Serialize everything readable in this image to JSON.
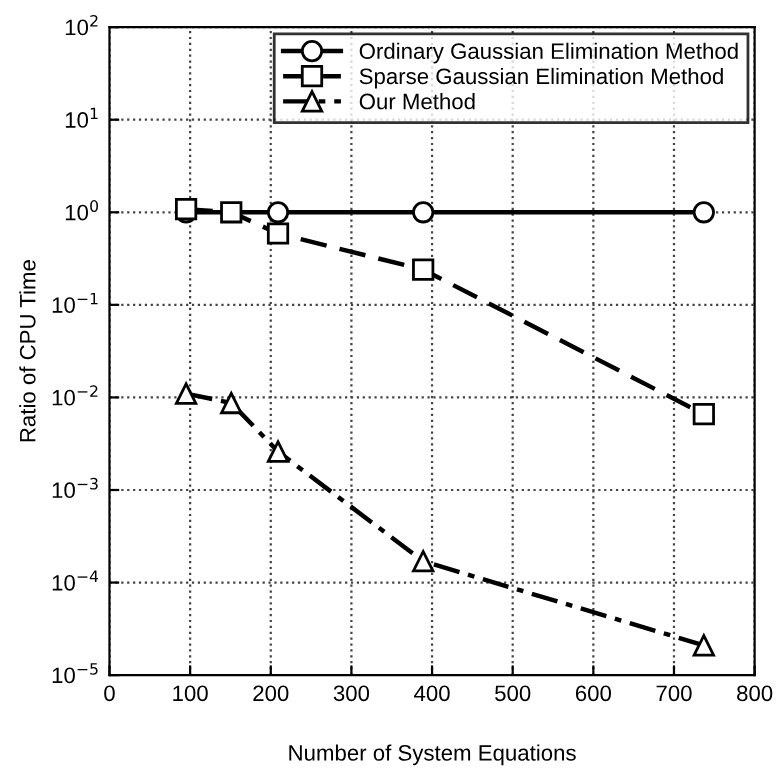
{
  "chart_data": {
    "type": "line",
    "xlabel": "Number of System Equations",
    "ylabel": "Ratio of CPU Time",
    "log": "y",
    "grid": true,
    "legend": "top right",
    "xlim": [
      0,
      800
    ],
    "xticks": [
      0,
      100,
      200,
      300,
      400,
      500,
      600,
      700,
      800
    ],
    "ylim": [
      1e-05,
      100
    ],
    "yticks": [
      {
        "value": 1e-05,
        "label": "10$^{−5}$"
      },
      {
        "value": 0.0001,
        "label": "10$^{−4}$"
      },
      {
        "value": 0.001,
        "label": "10$^{−3}$"
      },
      {
        "value": 0.01,
        "label": "10$^{−2}$"
      },
      {
        "value": 0.1,
        "label": "10$^{−1}$"
      },
      {
        "value": 1,
        "label": "10$^{0}$"
      },
      {
        "value": 10,
        "label": "10$^{1}$"
      },
      {
        "value": 100,
        "label": "10$^{2}$"
      }
    ],
    "series": [
      {
        "name": "Ordinary Gaussian Elimination Method",
        "color": "#000000",
        "marker": "circle",
        "line_style": "solid",
        "x": [
          95,
          209,
          389,
          737
        ],
        "values": [
          1.0,
          1.0,
          1.0,
          1.0
        ]
      },
      {
        "name": "Sparse Gaussian Elimination Method",
        "color": "#000000",
        "marker": "square",
        "line_style": "dashed",
        "x": [
          95,
          151,
          209,
          389,
          737
        ],
        "values": [
          1.08,
          1.0,
          0.59,
          0.24,
          0.0066
        ]
      },
      {
        "name": "Our Method",
        "color": "#000000",
        "marker": "triangle",
        "line_style": "dashdot",
        "x": [
          95,
          151,
          209,
          389,
          737
        ],
        "values": [
          0.011,
          0.0087,
          0.0026,
          0.00017,
          2.1e-05
        ]
      }
    ]
  }
}
